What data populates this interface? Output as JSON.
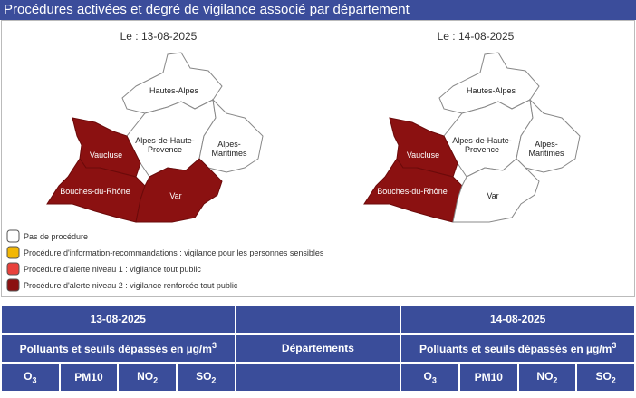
{
  "header": {
    "title": "Procédures activées et degré de vigilance associé par département"
  },
  "legend": [
    {
      "label": "Pas de procédure",
      "color": "#ffffff"
    },
    {
      "label": "Procédure d'information-recommandations : vigilance pour les personnes sensibles",
      "color": "#f2b705"
    },
    {
      "label": "Procédure d'alerte niveau 1 : vigilance tout public",
      "color": "#e8413c"
    },
    {
      "label": "Procédure d'alerte niveau 2 : vigilance renforcée tout public",
      "color": "#8b1111"
    }
  ],
  "maps": [
    {
      "date": "Le : 13-08-2025",
      "departments": [
        {
          "name": [
            "Hautes-Alpes"
          ],
          "level": 0
        },
        {
          "name": [
            "Alpes-de-Haute-",
            "Provence"
          ],
          "level": 0
        },
        {
          "name": [
            "Alpes-",
            "Maritimes"
          ],
          "level": 0
        },
        {
          "name": [
            "Vaucluse"
          ],
          "level": 3
        },
        {
          "name": [
            "Bouches-du-Rhône"
          ],
          "level": 3
        },
        {
          "name": [
            "Var"
          ],
          "level": 3
        }
      ]
    },
    {
      "date": "Le : 14-08-2025",
      "departments": [
        {
          "name": [
            "Hautes-Alpes"
          ],
          "level": 0
        },
        {
          "name": [
            "Alpes-de-Haute-",
            "Provence"
          ],
          "level": 0
        },
        {
          "name": [
            "Alpes-",
            "Maritimes"
          ],
          "level": 0
        },
        {
          "name": [
            "Vaucluse"
          ],
          "level": 3
        },
        {
          "name": [
            "Bouches-du-Rhône"
          ],
          "level": 3
        },
        {
          "name": [
            "Var"
          ],
          "level": 0
        }
      ]
    }
  ],
  "table": {
    "dates": [
      "13-08-2025",
      "14-08-2025"
    ],
    "pollutants_heading": {
      "text": "Polluants et seuils dépassés en µg/m",
      "sup": "3"
    },
    "departments_heading": "Départements",
    "pollutants": [
      {
        "base": "O",
        "sub": "3"
      },
      {
        "base": "PM10"
      },
      {
        "base": "NO",
        "sub": "2"
      },
      {
        "base": "SO",
        "sub": "2"
      }
    ]
  }
}
